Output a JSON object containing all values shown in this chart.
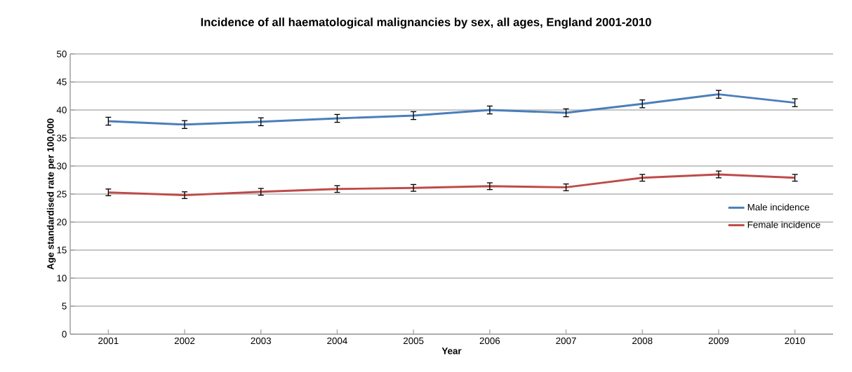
{
  "chart_data": {
    "type": "line",
    "title": "Incidence of all haematological malignancies by sex, all ages, England 2001-2010",
    "xlabel": "Year",
    "ylabel": "Age standardised rate per 100,000",
    "categories": [
      "2001",
      "2002",
      "2003",
      "2004",
      "2005",
      "2006",
      "2007",
      "2008",
      "2009",
      "2010"
    ],
    "series": [
      {
        "name": "Male incidence",
        "color": "#4a7ebb",
        "values": [
          38.0,
          37.4,
          37.9,
          38.5,
          39.0,
          40.0,
          39.5,
          41.1,
          42.8,
          41.3
        ],
        "errors": [
          0.7,
          0.7,
          0.7,
          0.7,
          0.7,
          0.7,
          0.7,
          0.7,
          0.7,
          0.7
        ]
      },
      {
        "name": "Female incidence",
        "color": "#be4b48",
        "values": [
          25.3,
          24.8,
          25.4,
          25.9,
          26.1,
          26.4,
          26.2,
          27.9,
          28.5,
          27.9
        ],
        "errors": [
          0.6,
          0.6,
          0.6,
          0.6,
          0.6,
          0.6,
          0.6,
          0.6,
          0.6,
          0.6
        ]
      }
    ],
    "ylim": [
      0,
      50
    ],
    "yticks": [
      0,
      5,
      10,
      15,
      20,
      25,
      30,
      35,
      40,
      45,
      50
    ],
    "grid": "y",
    "legend": "right",
    "marker": "none",
    "line_style": "solid"
  }
}
